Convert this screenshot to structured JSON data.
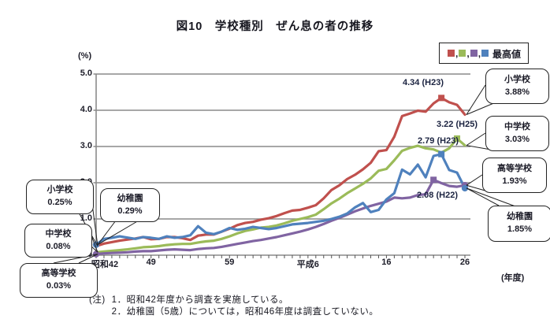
{
  "figure": {
    "title": "図10　学校種別　ぜん息の者の推移"
  },
  "legend": {
    "label": "最高値",
    "separator": ","
  },
  "notes": {
    "prefix": "(注)",
    "items": [
      "1．昭和42年度から調査を実施している。",
      "2．幼稚園（5歳）については，昭和46年度は調査していない。"
    ]
  },
  "annotations": [
    {
      "text": "4.34 (H23)",
      "series": "小学校"
    },
    {
      "text": "3.22 (H25)",
      "series": "中学校"
    },
    {
      "text": "2.79 (H23)",
      "series": "幼稚園"
    },
    {
      "text": "2.08 (H22)",
      "series": "高等学校"
    }
  ],
  "callouts": {
    "left": [
      {
        "series": "小学校",
        "label": "小学校",
        "value": "0.25%",
        "anchor": "start"
      },
      {
        "series": "幼稚園",
        "label": "幼稚園",
        "value": "0.29%",
        "anchor": "start"
      },
      {
        "series": "中学校",
        "label": "中学校",
        "value": "0.08%",
        "anchor": "start"
      },
      {
        "series": "高等学校",
        "label": "高等学校",
        "value": "0.03%",
        "anchor": "start"
      }
    ],
    "right": [
      {
        "series": "小学校",
        "label": "小学校",
        "value": "3.88%",
        "anchor": "end"
      },
      {
        "series": "中学校",
        "label": "中学校",
        "value": "3.03%",
        "anchor": "end"
      },
      {
        "series": "高等学校",
        "label": "高等学校",
        "value": "1.93%",
        "anchor": "end"
      },
      {
        "series": "幼稚園",
        "label": "幼稚園",
        "value": "1.85%",
        "anchor": "end"
      }
    ]
  },
  "chart_data": {
    "type": "line",
    "title": "図10　学校種別　ぜん息の者の推移",
    "ylabel": "(%)",
    "xlabel": "(年度)",
    "ylim": [
      0.0,
      5.0
    ],
    "y_ticks": [
      "5.0",
      "4.0",
      "3.0",
      "2.0",
      "1.0",
      "0.0"
    ],
    "x_years": {
      "start": 1967,
      "end": 2014
    },
    "x_ticks": [
      {
        "label": "昭和42",
        "year": 1967
      },
      {
        "label": "49",
        "year": 1974
      },
      {
        "label": "59",
        "year": 1984
      },
      {
        "label": "平成6",
        "year": 1994
      },
      {
        "label": "16",
        "year": 2004
      },
      {
        "label": "26",
        "year": 2014
      }
    ],
    "grid": "horizontal",
    "legend_position": "top-right",
    "series": [
      {
        "name": "小学校",
        "color": "#C0504D",
        "start_value": 0.25,
        "end_value": 3.88,
        "max": {
          "value": 4.34,
          "era_label": "H23",
          "year": 2011
        },
        "dot_start": false,
        "dot_end": false,
        "values": [
          0.25,
          0.32,
          0.36,
          0.4,
          0.43,
          0.46,
          0.5,
          0.44,
          0.45,
          0.5,
          0.5,
          0.47,
          0.42,
          0.54,
          0.57,
          0.57,
          0.65,
          0.73,
          0.83,
          0.89,
          0.92,
          0.98,
          1.02,
          1.08,
          1.16,
          1.23,
          1.25,
          1.31,
          1.38,
          1.57,
          1.8,
          1.93,
          2.1,
          2.22,
          2.37,
          2.55,
          2.87,
          2.9,
          3.27,
          3.84,
          3.91,
          3.99,
          3.96,
          4.19,
          4.34,
          4.22,
          4.15,
          3.88
        ]
      },
      {
        "name": "中学校",
        "color": "#9BBB59",
        "start_value": 0.08,
        "end_value": 3.03,
        "max": {
          "value": 3.22,
          "era_label": "H25",
          "year": 2013
        },
        "dot_start": false,
        "dot_end": false,
        "values": [
          0.08,
          0.1,
          0.12,
          0.14,
          0.16,
          0.19,
          0.22,
          0.23,
          0.25,
          0.28,
          0.3,
          0.31,
          0.31,
          0.35,
          0.38,
          0.4,
          0.45,
          0.52,
          0.6,
          0.67,
          0.71,
          0.76,
          0.78,
          0.82,
          0.88,
          0.95,
          1.0,
          1.05,
          1.12,
          1.27,
          1.43,
          1.56,
          1.71,
          1.84,
          1.97,
          2.12,
          2.33,
          2.38,
          2.62,
          2.88,
          2.96,
          3.02,
          2.95,
          2.92,
          2.83,
          2.95,
          3.22,
          3.03
        ]
      },
      {
        "name": "高等学校",
        "color": "#8064A2",
        "start_value": 0.03,
        "end_value": 1.93,
        "max": {
          "value": 2.08,
          "era_label": "H22",
          "year": 2010
        },
        "dot_start": true,
        "dot_end": true,
        "values": [
          0.03,
          0.05,
          0.06,
          0.07,
          0.08,
          0.1,
          0.11,
          0.11,
          0.13,
          0.15,
          0.16,
          0.15,
          0.14,
          0.17,
          0.19,
          0.2,
          0.23,
          0.27,
          0.31,
          0.35,
          0.39,
          0.42,
          0.46,
          0.5,
          0.55,
          0.6,
          0.65,
          0.71,
          0.78,
          0.86,
          0.95,
          1.03,
          1.12,
          1.21,
          1.29,
          1.36,
          1.42,
          1.48,
          1.59,
          1.57,
          1.59,
          1.66,
          1.68,
          2.08,
          1.99,
          1.91,
          1.89,
          1.93
        ]
      },
      {
        "name": "幼稚園",
        "color": "#4F81BD",
        "start_value": 0.29,
        "end_value": 1.85,
        "max": {
          "value": 2.79,
          "era_label": "H23",
          "year": 2011
        },
        "dot_start": true,
        "dot_end": true,
        "values": [
          0.29,
          0.45,
          0.48,
          0.52,
          null,
          0.45,
          0.5,
          0.48,
          0.45,
          0.52,
          0.48,
          0.5,
          0.55,
          0.8,
          0.62,
          0.58,
          0.65,
          0.75,
          0.7,
          0.73,
          0.78,
          0.75,
          0.72,
          0.75,
          0.8,
          0.85,
          0.87,
          0.89,
          0.92,
          0.95,
          1.0,
          1.06,
          1.15,
          1.32,
          1.44,
          1.19,
          1.25,
          1.54,
          1.71,
          2.36,
          2.23,
          2.5,
          2.15,
          2.74,
          2.79,
          2.35,
          2.28,
          1.85
        ]
      }
    ]
  }
}
